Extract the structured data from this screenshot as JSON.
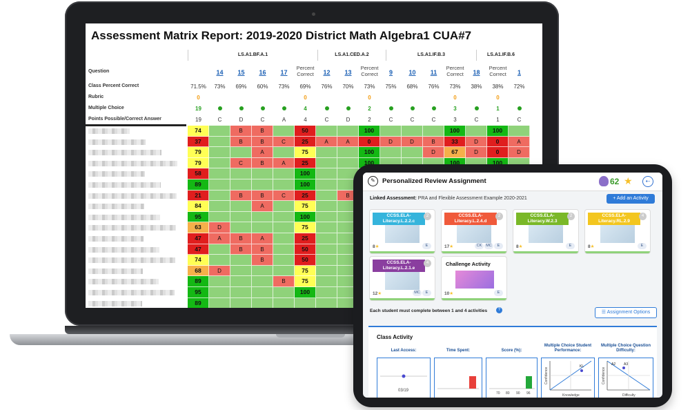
{
  "report": {
    "title": "Assessment Matrix Report: 2019-2020 District Math Algebra1 CUA#7",
    "standards": [
      "LS.A1.BF.A.1",
      "LS.A1.CED.A.2",
      "LS.A1.IF.B.3",
      "LS.A1.IF.B.6"
    ],
    "row_labels": {
      "question": "Question",
      "class_pct": "Class Percent Correct",
      "rubric": "Rubric",
      "multiple_choice": "Multiple Choice",
      "points": "Points Possible/Correct Answer"
    },
    "columns": [
      {
        "q": "",
        "class_pct": "71.5%",
        "rubric": "0",
        "mc": "19",
        "mc_dot": false,
        "points": "19"
      },
      {
        "q": "14",
        "class_pct": "73%",
        "rubric": "",
        "mc": "",
        "mc_dot": true,
        "points": "C"
      },
      {
        "q": "15",
        "class_pct": "69%",
        "rubric": "",
        "mc": "",
        "mc_dot": true,
        "points": "D"
      },
      {
        "q": "16",
        "class_pct": "60%",
        "rubric": "",
        "mc": "",
        "mc_dot": true,
        "points": "C"
      },
      {
        "q": "17",
        "class_pct": "73%",
        "rubric": "",
        "mc": "",
        "mc_dot": true,
        "points": "A"
      },
      {
        "q": "Percent Correct",
        "class_pct": "69%",
        "rubric": "0",
        "mc": "4",
        "mc_dot": false,
        "points": "4"
      },
      {
        "q": "12",
        "class_pct": "76%",
        "rubric": "",
        "mc": "",
        "mc_dot": true,
        "points": "C"
      },
      {
        "q": "13",
        "class_pct": "70%",
        "rubric": "",
        "mc": "",
        "mc_dot": true,
        "points": "D"
      },
      {
        "q": "Percent Correct",
        "class_pct": "73%",
        "rubric": "0",
        "mc": "2",
        "mc_dot": false,
        "points": "2"
      },
      {
        "q": "9",
        "class_pct": "75%",
        "rubric": "",
        "mc": "",
        "mc_dot": true,
        "points": "C"
      },
      {
        "q": "10",
        "class_pct": "68%",
        "rubric": "",
        "mc": "",
        "mc_dot": true,
        "points": "C"
      },
      {
        "q": "11",
        "class_pct": "76%",
        "rubric": "",
        "mc": "",
        "mc_dot": true,
        "points": "C"
      },
      {
        "q": "Percent Correct",
        "class_pct": "73%",
        "rubric": "0",
        "mc": "3",
        "mc_dot": false,
        "points": "3"
      },
      {
        "q": "18",
        "class_pct": "38%",
        "rubric": "",
        "mc": "",
        "mc_dot": true,
        "points": "C"
      },
      {
        "q": "Percent Correct",
        "class_pct": "38%",
        "rubric": "0",
        "mc": "1",
        "mc_dot": false,
        "points": "1"
      },
      {
        "q": "1",
        "class_pct": "72%",
        "rubric": "",
        "mc": "",
        "mc_dot": true,
        "points": "C"
      }
    ],
    "rows": [
      [
        "74",
        "",
        "B",
        "B",
        "",
        "50",
        "",
        "",
        "100",
        "",
        "",
        "",
        "100",
        "",
        "100",
        ""
      ],
      [
        "37",
        "",
        "B",
        "B",
        "C",
        "25",
        "A",
        "A",
        "0",
        "D",
        "D",
        "B",
        "33",
        "D",
        "0",
        "A"
      ],
      [
        "79",
        "",
        "",
        "A",
        "",
        "75",
        "",
        "",
        "100",
        "",
        "",
        "D",
        "67",
        "D",
        "0",
        "D"
      ],
      [
        "79",
        "",
        "C",
        "B",
        "A",
        "25",
        "",
        "",
        "100",
        "",
        "",
        "",
        "100",
        "",
        "100",
        ""
      ],
      [
        "58",
        "",
        "",
        "",
        "",
        "100",
        "",
        "",
        "",
        "",
        "",
        "",
        "",
        "",
        "",
        ""
      ],
      [
        "89",
        "",
        "",
        "",
        "",
        "100",
        "",
        "",
        "",
        "",
        "",
        "",
        "",
        "",
        "",
        ""
      ],
      [
        "21",
        "",
        "B",
        "B",
        "C",
        "25",
        "",
        "B",
        "",
        "",
        "",
        "",
        "",
        "",
        "",
        ""
      ],
      [
        "84",
        "",
        "",
        "A",
        "",
        "75",
        "",
        "",
        "",
        "",
        "",
        "",
        "",
        "",
        "",
        ""
      ],
      [
        "95",
        "",
        "",
        "",
        "",
        "100",
        "",
        "",
        "",
        "",
        "",
        "",
        "",
        "",
        "",
        ""
      ],
      [
        "63",
        "D",
        "",
        "",
        "",
        "75",
        "",
        "",
        "",
        "",
        "",
        "",
        "",
        "",
        "",
        ""
      ],
      [
        "47",
        "A",
        "B",
        "A",
        "",
        "25",
        "",
        "",
        "",
        "",
        "",
        "",
        "",
        "",
        "",
        ""
      ],
      [
        "47",
        "",
        "B",
        "B",
        "",
        "50",
        "",
        "",
        "",
        "",
        "",
        "",
        "",
        "",
        "",
        ""
      ],
      [
        "74",
        "",
        "",
        "B",
        "",
        "50",
        "",
        "",
        "",
        "",
        "",
        "",
        "",
        "",
        "",
        ""
      ],
      [
        "68",
        "D",
        "",
        "",
        "",
        "75",
        "",
        "",
        "",
        "",
        "",
        "",
        "",
        "",
        "",
        ""
      ],
      [
        "89",
        "",
        "",
        "",
        "B",
        "75",
        "",
        "",
        "",
        "",
        "",
        "",
        "",
        "",
        "",
        ""
      ],
      [
        "95",
        "",
        "",
        "",
        "",
        "100",
        "",
        "",
        "",
        "",
        "",
        "",
        "",
        "",
        "",
        ""
      ],
      [
        "89",
        "",
        "",
        "",
        "",
        "",
        "",
        "",
        "",
        "",
        "",
        "",
        "",
        "",
        "",
        ""
      ]
    ]
  },
  "tablet": {
    "title": "Personalized Review Assignment",
    "score": "62",
    "linked_label": "Linked Assessment:",
    "linked_value": "PRA and Flexible Assessment Example 2020-2021",
    "add_button": "+ Add an Activity",
    "cards": [
      {
        "tag": "CCSS.ELA-Literacy.L.2.2.c",
        "num": "2",
        "color": "#35b4dc",
        "pts": "8",
        "badges": [
          "E"
        ]
      },
      {
        "tag": "CCSS.ELA-Literacy.L.2.4.d",
        "num": "2",
        "color": "#f05a3b",
        "pts": "17",
        "badges": [
          "CK",
          "MC",
          "E"
        ]
      },
      {
        "tag": "CCSS.ELA-Literacy.W.2.3",
        "num": "2",
        "color": "#7ab828",
        "pts": "8",
        "badges": [
          "E"
        ]
      },
      {
        "tag": "CCSS.ELA-Literacy.RL.2.9",
        "num": "4",
        "color": "#f3c61f",
        "pts": "8",
        "badges": [
          "E"
        ]
      },
      {
        "tag": "CCSS.ELA-Literacy.L.2.1.e",
        "num": "4",
        "color": "#8a3e9f",
        "pts": "12",
        "badges": [
          "MC",
          "E"
        ]
      }
    ],
    "challenge": {
      "title": "Challenge Activity",
      "pts": "10",
      "badges": [
        "E"
      ]
    },
    "requirement": "Each student must complete between 1 and 4 activities",
    "options_button": "Assignment Options",
    "class_activity": "Class Activity",
    "metrics": [
      "Last Access:",
      "Time Spent:",
      "Score (%):",
      "Multiple Choice Student Performance:",
      "Multiple Choice Question Difficulty:"
    ],
    "last_access_date": "03/19",
    "score_ticks": [
      "70",
      "80",
      "90",
      "96"
    ],
    "axis_labels": {
      "confidence": "Confidence",
      "knowledge": "Knowledge",
      "difficulty": "Difficulty"
    },
    "point_labels": {
      "kl": "KL",
      "a2": "A2",
      "a3": "A3"
    }
  },
  "colors": {
    "cell_green": "#8fd27a",
    "cell_red": "#ef6b61",
    "cell_yellow": "#ffff55",
    "accent_blue": "#2f7bd8"
  }
}
